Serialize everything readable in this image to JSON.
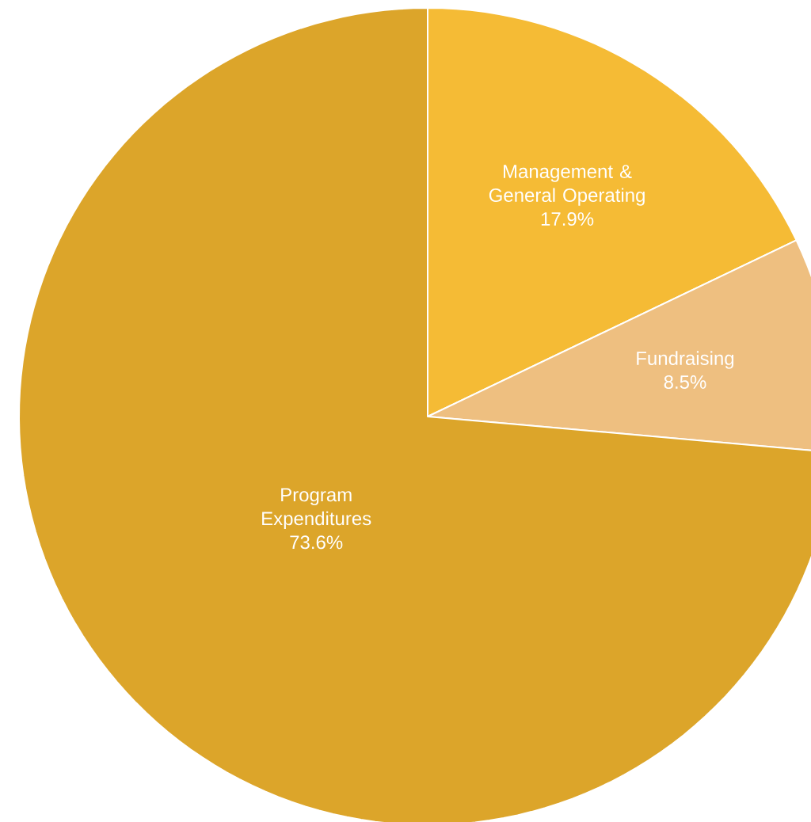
{
  "chart_data": {
    "type": "pie",
    "categories": [
      "Management & General Operating",
      "Fundraising",
      "Program Expenditures"
    ],
    "values": [
      17.9,
      8.5,
      73.6
    ],
    "value_labels": [
      "17.9%",
      "8.5%",
      "73.6%"
    ],
    "colors": [
      "#f5bb35",
      "#eebf80",
      "#dca52a"
    ]
  }
}
